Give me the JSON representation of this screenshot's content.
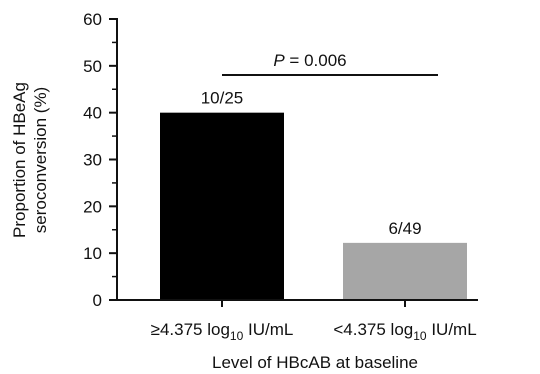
{
  "chart_data": {
    "type": "bar",
    "categories": [
      {
        "main": "≥4.375 log",
        "sub": "10",
        "unit": " IU/mL"
      },
      {
        "main": "<4.375 log",
        "sub": "10",
        "unit": " IU/mL"
      }
    ],
    "values": [
      40,
      12.2
    ],
    "bar_labels": [
      "10/25",
      "6/49"
    ],
    "bar_colors": [
      "#000000",
      "#a6a6a6"
    ],
    "xlabel": "Level of HBcAB at baseline",
    "ylabel_lines": [
      "Proportion of HBeAg",
      "seroconversion (%)"
    ],
    "ylim": [
      0,
      60
    ],
    "yticks": [
      0,
      10,
      20,
      30,
      40,
      50,
      60
    ],
    "grid": false,
    "significance": {
      "p_italic": "P",
      "p_rest": " = 0.006"
    }
  }
}
